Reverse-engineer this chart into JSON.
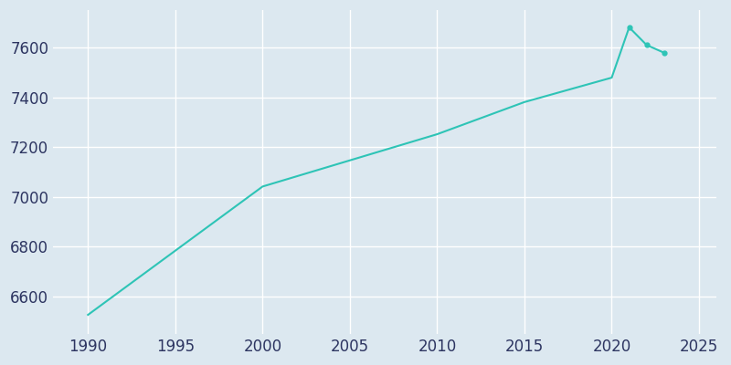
{
  "years": [
    1990,
    2000,
    2010,
    2015,
    2020,
    2021,
    2022,
    2023
  ],
  "population": [
    6527,
    7042,
    7252,
    7381,
    7479,
    7681,
    7610,
    7579
  ],
  "line_color": "#2ec4b6",
  "marker_indices": [
    5,
    6,
    7
  ],
  "marker_color": "#2ec4b6",
  "background_color": "#dce8f0",
  "grid_color": "#ffffff",
  "tick_label_color": "#2d3561",
  "xlim": [
    1988,
    2026
  ],
  "ylim": [
    6450,
    7750
  ],
  "xticks": [
    1990,
    1995,
    2000,
    2005,
    2010,
    2015,
    2020,
    2025
  ],
  "yticks": [
    6600,
    6800,
    7000,
    7200,
    7400,
    7600
  ],
  "line_width": 1.5,
  "marker_size": 3.5,
  "tick_fontsize": 12
}
